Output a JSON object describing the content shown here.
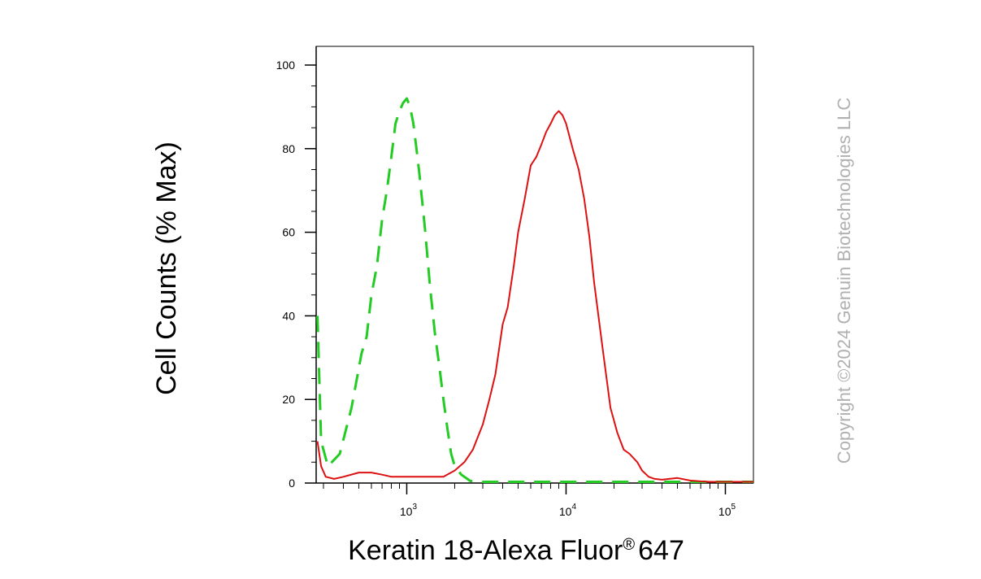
{
  "chart_data": {
    "type": "line",
    "xlabel": "Keratin 18-Alexa Fluor",
    "xlabel_mark": "®",
    "xlabel_suffix": "647",
    "ylabel": "Cell Counts (% Max)",
    "x_scale": "log",
    "xlim": [
      270,
      150000
    ],
    "ylim": [
      0,
      100
    ],
    "y_ticks": [
      0,
      20,
      40,
      60,
      80,
      100
    ],
    "x_ticks": [
      {
        "value": 1000,
        "base": "10",
        "exp": "3"
      },
      {
        "value": 10000,
        "base": "10",
        "exp": "4"
      },
      {
        "value": 100000,
        "base": "10",
        "exp": "5"
      }
    ],
    "grid": false,
    "legend": "none",
    "series": [
      {
        "color": "#22cc22",
        "style": "dashed",
        "x": [
          275,
          290,
          320,
          380,
          450,
          520,
          560,
          600,
          650,
          700,
          750,
          800,
          850,
          900,
          950,
          1000,
          1050,
          1100,
          1150,
          1200,
          1300,
          1400,
          1500,
          1600,
          1700,
          1800,
          1900,
          2000,
          2200,
          2500,
          3000,
          5000,
          10000,
          50000,
          150000
        ],
        "y": [
          40,
          10,
          4,
          7,
          18,
          31,
          35,
          45,
          52,
          63,
          70,
          78,
          86,
          89,
          91,
          92,
          90,
          86,
          80,
          74,
          61,
          47,
          36,
          28,
          20,
          13,
          7,
          4,
          2,
          0.5,
          0.3,
          0.3,
          0.3,
          0.3,
          0.3
        ]
      },
      {
        "color": "#dd1111",
        "style": "solid",
        "x": [
          275,
          290,
          310,
          350,
          400,
          500,
          600,
          700,
          800,
          1000,
          1300,
          1700,
          2000,
          2300,
          2600,
          3000,
          3300,
          3600,
          4000,
          4300,
          4700,
          5000,
          5500,
          6000,
          6500,
          7000,
          7500,
          8000,
          8500,
          9000,
          9500,
          10000,
          11000,
          12000,
          13000,
          14000,
          15000,
          17000,
          19000,
          21000,
          23000,
          25000,
          28000,
          30000,
          33000,
          36000,
          40000,
          50000,
          60000,
          70000,
          80000,
          100000,
          150000
        ],
        "y": [
          10,
          4,
          1.5,
          1,
          1.5,
          2.5,
          2.5,
          2,
          1.5,
          1.5,
          1.5,
          1.5,
          3,
          5,
          8,
          14,
          20,
          26,
          38,
          42,
          52,
          60,
          68,
          76,
          78,
          81,
          84,
          86,
          88,
          89,
          88,
          86,
          80,
          75,
          68,
          59,
          48,
          32,
          18,
          12,
          8,
          7,
          5,
          3,
          1.5,
          1,
          0.8,
          1.2,
          0.6,
          0.4,
          0.3,
          0.3,
          0.3
        ]
      }
    ]
  },
  "watermark": "Copyright ©2024 Genuin Biotechnologies LLC"
}
